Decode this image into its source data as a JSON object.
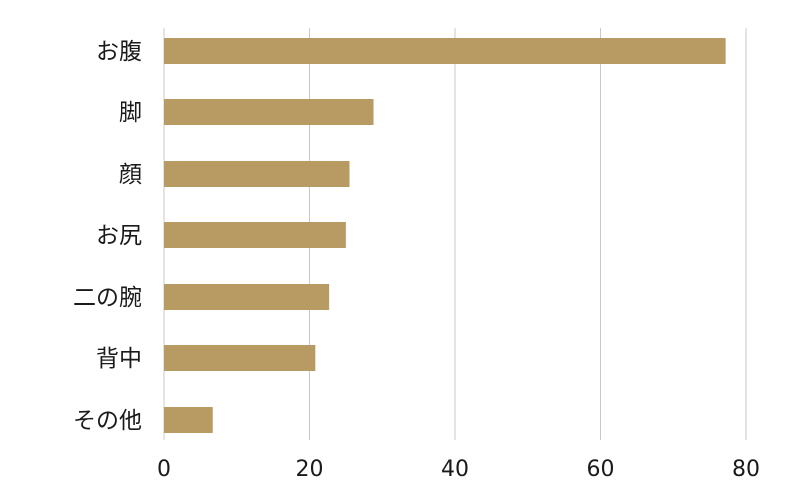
{
  "chart_data": {
    "type": "bar",
    "orientation": "horizontal",
    "categories": [
      "お腹",
      "脚",
      "顔",
      "お尻",
      "二の腕",
      "背中",
      "その他"
    ],
    "values": [
      77.2,
      28.8,
      25.5,
      25.0,
      22.7,
      20.8,
      6.7
    ],
    "xlim": [
      0,
      80
    ],
    "xticks": [
      "0",
      "20",
      "40",
      "60",
      "80"
    ],
    "grid": "vertical",
    "bar_color": "#b89b62",
    "grid_color": "#c8c8c8"
  }
}
